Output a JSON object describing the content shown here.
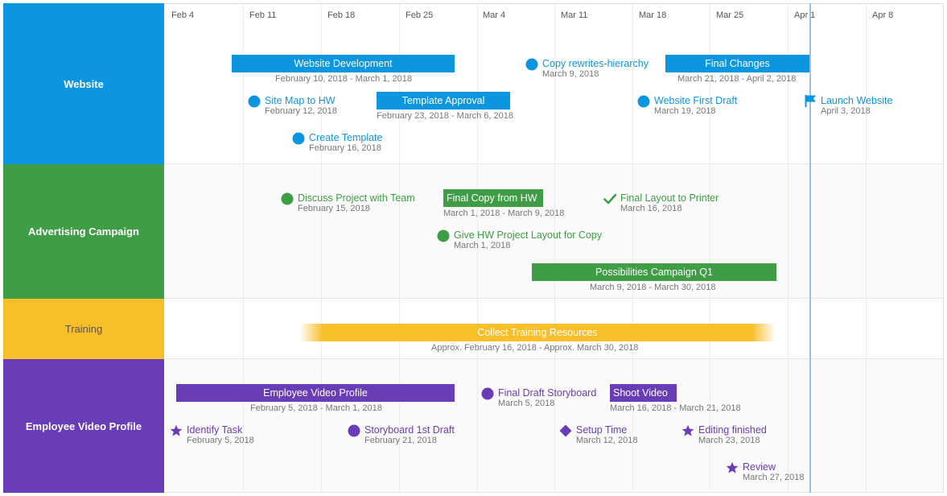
{
  "colors": {
    "website": "#0d96e0",
    "advertising": "#3e9d45",
    "training": "#f9bf2b",
    "training_label_text": "#555555",
    "video": "#6a3db8"
  },
  "timeline": {
    "dates": [
      "Feb 4",
      "Feb 11",
      "Feb 18",
      "Feb 25",
      "Mar 4",
      "Mar 11",
      "Mar 18",
      "Mar 25",
      "Apr 1",
      "Apr 8"
    ]
  },
  "lanes": {
    "website": "Website",
    "advertising": "Advertising Campaign",
    "training": "Training",
    "video": "Employee Video Profile"
  },
  "website": {
    "website_development": {
      "title": "Website Development",
      "dates": "February 10, 2018 - March 1, 2018"
    },
    "copy_rewrites": {
      "title": "Copy rewrites-hierarchy",
      "date": "March 9, 2018",
      "icon": "circle-icon"
    },
    "final_changes": {
      "title": "Final Changes",
      "dates": "March 21, 2018 - April 2, 2018"
    },
    "site_map": {
      "title": "Site Map to HW",
      "date": "February 12, 2018",
      "icon": "circle-icon"
    },
    "template_approval": {
      "title": "Template Approval",
      "dates": "February 23, 2018 - March 6, 2018"
    },
    "first_draft": {
      "title": "Website First Draft",
      "date": "March 19, 2018",
      "icon": "circle-icon"
    },
    "launch": {
      "title": "Launch Website",
      "date": "April 3, 2018",
      "icon": "flag-icon"
    },
    "create_template": {
      "title": "Create Template",
      "date": "February 16, 2018",
      "icon": "circle-icon"
    }
  },
  "advertising": {
    "discuss_project": {
      "title": "Discuss Project with Team",
      "date": "February 15, 2018",
      "icon": "circle-icon"
    },
    "final_copy": {
      "title": "Final Copy from HW",
      "dates": "March 1, 2018 - March 9, 2018"
    },
    "final_layout": {
      "title": "Final Layout to Printer",
      "date": "March 16, 2018",
      "icon": "checkmark-icon"
    },
    "give_layout": {
      "title": "Give HW Project Layout for Copy",
      "date": "March 1, 2018",
      "icon": "circle-icon"
    },
    "possibilities": {
      "title": "Possibilities Campaign Q1",
      "dates": "March 9, 2018 - March 30, 2018"
    }
  },
  "training": {
    "collect_resources": {
      "title": "Collect Training Resources",
      "dates": "Approx. February 16, 2018 - Approx. March 30, 2018"
    }
  },
  "video": {
    "employee_video_profile": {
      "title": "Employee Video Profile",
      "dates": "February 5, 2018 - March 1, 2018"
    },
    "final_draft_storyboard": {
      "title": "Final Draft Storyboard",
      "date": "March 5, 2018",
      "icon": "circle-icon"
    },
    "shoot_video": {
      "title": "Shoot Video",
      "dates": "March 16, 2018 - March 21, 2018"
    },
    "identify_task": {
      "title": "Identify Task",
      "date": "February 5, 2018",
      "icon": "star-icon"
    },
    "storyboard_first_draft": {
      "title": "Storyboard 1st Draft",
      "date": "February 21, 2018",
      "icon": "circle-icon"
    },
    "setup_time": {
      "title": "Setup Time",
      "date": "March 12, 2018",
      "icon": "diamond-icon"
    },
    "editing_finished": {
      "title": "Editing finished",
      "date": "March 23, 2018",
      "icon": "star-icon"
    },
    "review": {
      "title": "Review",
      "date": "March 27, 2018",
      "icon": "star-icon"
    }
  }
}
